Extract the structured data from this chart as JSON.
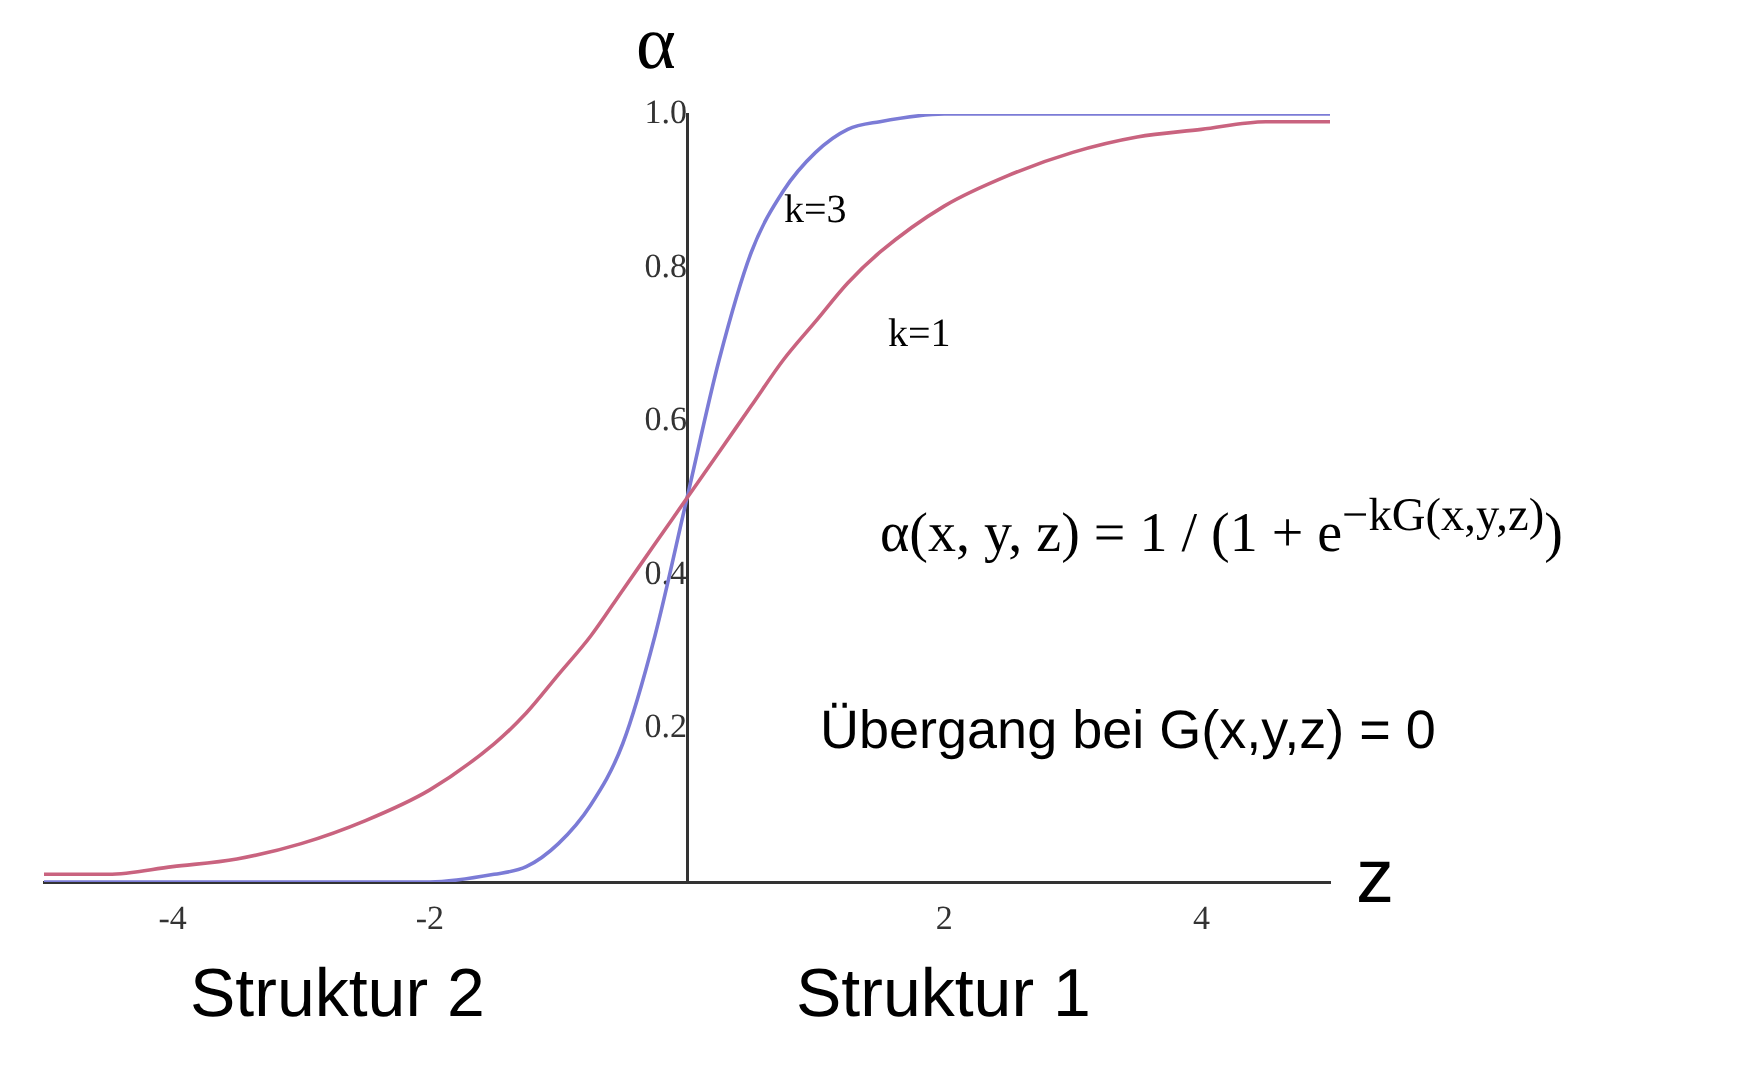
{
  "chart_data": {
    "type": "line",
    "xlabel": "z",
    "ylabel": "α",
    "xlim": [
      -5,
      5
    ],
    "ylim": [
      0,
      1.0
    ],
    "xticks": [
      -4,
      -2,
      2,
      4
    ],
    "yticks": [
      0.2,
      0.4,
      0.6,
      0.8,
      {
        "value": 1.0,
        "label": "1.0"
      }
    ],
    "grid": false,
    "legend": false,
    "marker": "none",
    "line_style": "solid",
    "x": [
      -5,
      -4.5,
      -4,
      -3.5,
      -3,
      -2.5,
      -2,
      -1.5,
      -1.25,
      -1,
      -0.75,
      -0.5,
      -0.25,
      0,
      0.25,
      0.5,
      0.75,
      1,
      1.25,
      1.5,
      2,
      2.5,
      3,
      3.5,
      4,
      4.5,
      5
    ],
    "series": [
      {
        "color": "#c9637f",
        "values": [
          0.01,
          0.01,
          0.02,
          0.03,
          0.05,
          0.08,
          0.12,
          0.18,
          0.22,
          0.27,
          0.32,
          0.38,
          0.44,
          0.5,
          0.56,
          0.62,
          0.68,
          0.73,
          0.78,
          0.82,
          0.88,
          0.92,
          0.95,
          0.97,
          0.98,
          0.99,
          0.99
        ]
      },
      {
        "color": "#7b7bd6",
        "values": [
          0,
          0,
          0,
          0,
          0,
          0,
          0,
          0.01,
          0.02,
          0.05,
          0.1,
          0.18,
          0.32,
          0.5,
          0.68,
          0.82,
          0.9,
          0.95,
          0.98,
          0.99,
          1.0,
          1.0,
          1.0,
          1.0,
          1.0,
          1.0,
          1.0
        ]
      }
    ],
    "annotations": [
      "k=3",
      "k=1",
      "α(x, y, z) = 1 / (1 + e$^{−kG(x,y,z)}$)",
      "Übergang bei G(x,y,z) = 0",
      "Struktur 2",
      "Struktur 1"
    ]
  }
}
